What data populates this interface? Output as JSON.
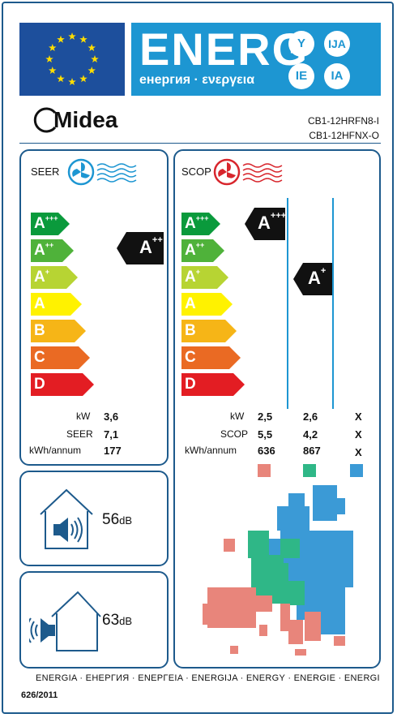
{
  "header": {
    "title": "ENERG",
    "subtitle": "енергия · ενεργεια",
    "suffixes": [
      "Y",
      "IJA",
      "IE",
      "IA"
    ],
    "colors": {
      "eu_blue": "#1d4f9c",
      "energy_blue": "#1d96d2",
      "star": "#ffdd00"
    }
  },
  "supplier": {
    "brand": "Midea",
    "model_indoor": "CB1-12HRFN8-I",
    "model_outdoor": "CB1-12HFNX-O"
  },
  "scale": {
    "classes": [
      {
        "letter": "A",
        "sup": "+++",
        "color": "#0a9a3c"
      },
      {
        "letter": "A",
        "sup": "++",
        "color": "#4fb23a"
      },
      {
        "letter": "A",
        "sup": "+",
        "color": "#b7d433"
      },
      {
        "letter": "A",
        "sup": "",
        "color": "#fff200"
      },
      {
        "letter": "B",
        "sup": "",
        "color": "#f6b517"
      },
      {
        "letter": "C",
        "sup": "",
        "color": "#ea6a23"
      },
      {
        "letter": "D",
        "sup": "",
        "color": "#e31d23"
      }
    ]
  },
  "cooling": {
    "title": "SEER",
    "rating_letter": "A",
    "rating_sup": "++",
    "labels": [
      "kW",
      "SEER",
      "kWh/annum"
    ],
    "values": [
      "3,6",
      "7,1",
      "177"
    ],
    "fan_color": "#1d96d2"
  },
  "heating": {
    "title": "SCOP",
    "rating_warm_letter": "A",
    "rating_warm_sup": "+++",
    "rating_avg_letter": "A",
    "rating_avg_sup": "+",
    "labels": [
      "kW",
      "SCOP",
      "kWh/annum"
    ],
    "warmer": [
      "2,5",
      "5,5",
      "636"
    ],
    "average": [
      "2,6",
      "4,2",
      "867"
    ],
    "colder": [
      "X",
      "X",
      "X"
    ],
    "fan_color": "#d8262d",
    "zone_colors": [
      "#e8857b",
      "#2fb787",
      "#3b9ad6"
    ]
  },
  "noise": {
    "indoor_value": "56",
    "outdoor_value": "63",
    "unit": "dB"
  },
  "footer": {
    "languages": "ENERGIA · ЕНЕРГИЯ · ΕΝΕΡΓΕΙΑ · ENERGIJA · ENERGY · ENERGIE · ENERGI",
    "regulation": "626/2011"
  }
}
